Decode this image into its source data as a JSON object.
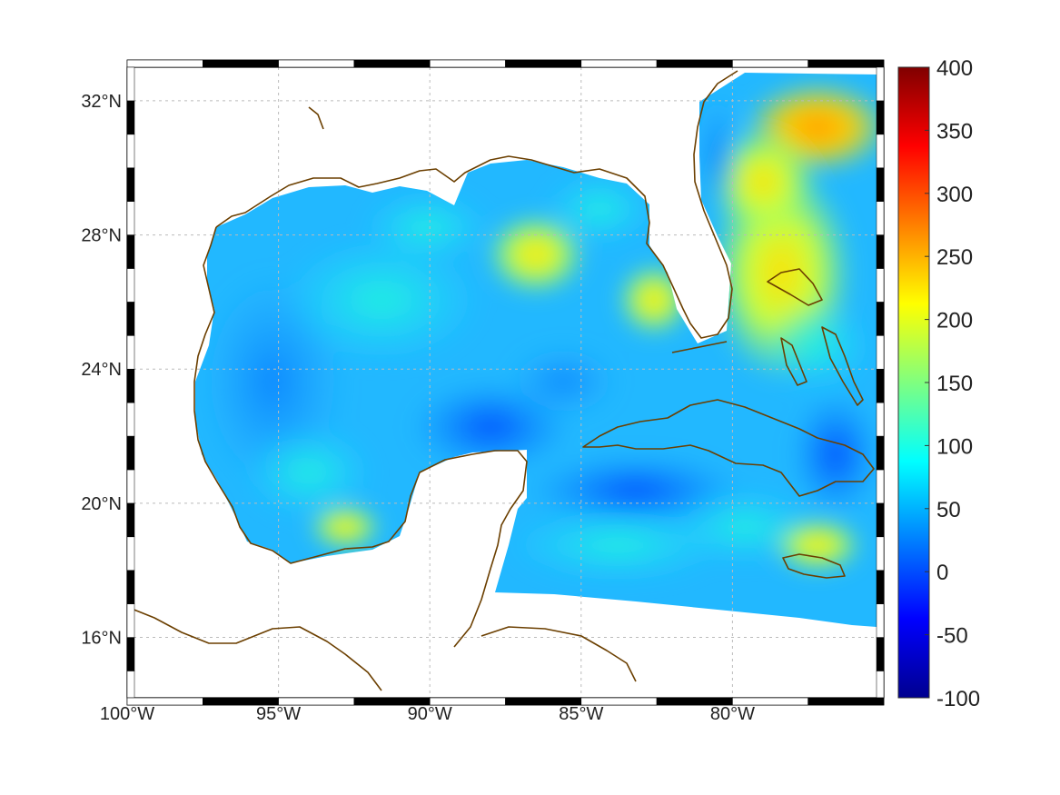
{
  "map": {
    "lon_range": [
      -100,
      -75
    ],
    "lat_range": [
      14.2,
      33
    ],
    "coastline_color": "#6b3f00",
    "colormap": "jet",
    "x_ticks": [
      {
        "lon": -100,
        "label": "100°W"
      },
      {
        "lon": -95,
        "label": "95°W"
      },
      {
        "lon": -90,
        "label": "90°W"
      },
      {
        "lon": -85,
        "label": "85°W"
      },
      {
        "lon": -80,
        "label": "80°W"
      }
    ],
    "y_ticks": [
      {
        "lat": 32,
        "label": "32°N"
      },
      {
        "lat": 28,
        "label": "28°N"
      },
      {
        "lat": 24,
        "label": "24°N"
      },
      {
        "lat": 20,
        "label": "20°N"
      },
      {
        "lat": 16,
        "label": "16°N"
      }
    ]
  },
  "colorbar": {
    "min": -100,
    "max": 400,
    "ticks": [
      {
        "value": 400,
        "label": "400"
      },
      {
        "value": 350,
        "label": "350"
      },
      {
        "value": 300,
        "label": "300"
      },
      {
        "value": 250,
        "label": "250"
      },
      {
        "value": 200,
        "label": "200"
      },
      {
        "value": 150,
        "label": "150"
      },
      {
        "value": 100,
        "label": "100"
      },
      {
        "value": 50,
        "label": "50"
      },
      {
        "value": 0,
        "label": "0"
      },
      {
        "value": -50,
        "label": "-50"
      },
      {
        "value": -100,
        "label": "-100"
      }
    ]
  }
}
